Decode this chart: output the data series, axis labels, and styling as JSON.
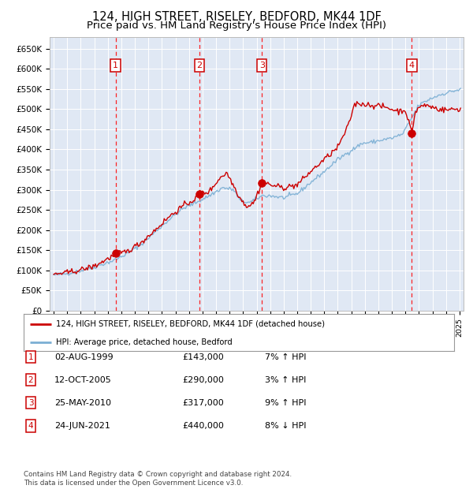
{
  "title": "124, HIGH STREET, RISELEY, BEDFORD, MK44 1DF",
  "subtitle": "Price paid vs. HM Land Registry's House Price Index (HPI)",
  "ylim": [
    0,
    680000
  ],
  "yticks": [
    0,
    50000,
    100000,
    150000,
    200000,
    250000,
    300000,
    350000,
    400000,
    450000,
    500000,
    550000,
    600000,
    650000
  ],
  "ytick_labels": [
    "£0",
    "£50K",
    "£100K",
    "£150K",
    "£200K",
    "£250K",
    "£300K",
    "£350K",
    "£400K",
    "£450K",
    "£500K",
    "£550K",
    "£600K",
    "£650K"
  ],
  "x_start_year": 1995,
  "x_end_year": 2025,
  "background_color": "#FFFFFF",
  "plot_bg_color": "#E0E8F4",
  "grid_color": "#FFFFFF",
  "red_line_color": "#CC0000",
  "blue_line_color": "#7BAFD4",
  "sale_marker_color": "#CC0000",
  "vline_color": "#FF0000",
  "number_box_color": "#CC0000",
  "title_fontsize": 10.5,
  "subtitle_fontsize": 9.5,
  "sales": [
    {
      "label": "1",
      "date_num": 1999.58,
      "price": 143000
    },
    {
      "label": "2",
      "date_num": 2005.78,
      "price": 290000
    },
    {
      "label": "3",
      "date_num": 2010.39,
      "price": 317000
    },
    {
      "label": "4",
      "date_num": 2021.48,
      "price": 440000
    }
  ],
  "table_entries": [
    {
      "num": "1",
      "date": "02-AUG-1999",
      "price": "£143,000",
      "hpi": "7% ↑ HPI"
    },
    {
      "num": "2",
      "date": "12-OCT-2005",
      "price": "£290,000",
      "hpi": "3% ↑ HPI"
    },
    {
      "num": "3",
      "date": "25-MAY-2010",
      "price": "£317,000",
      "hpi": "9% ↑ HPI"
    },
    {
      "num": "4",
      "date": "24-JUN-2021",
      "price": "£440,000",
      "hpi": "8% ↓ HPI"
    }
  ],
  "legend_line1": "124, HIGH STREET, RISELEY, BEDFORD, MK44 1DF (detached house)",
  "legend_line2": "HPI: Average price, detached house, Bedford",
  "footer": "Contains HM Land Registry data © Crown copyright and database right 2024.\nThis data is licensed under the Open Government Licence v3.0."
}
